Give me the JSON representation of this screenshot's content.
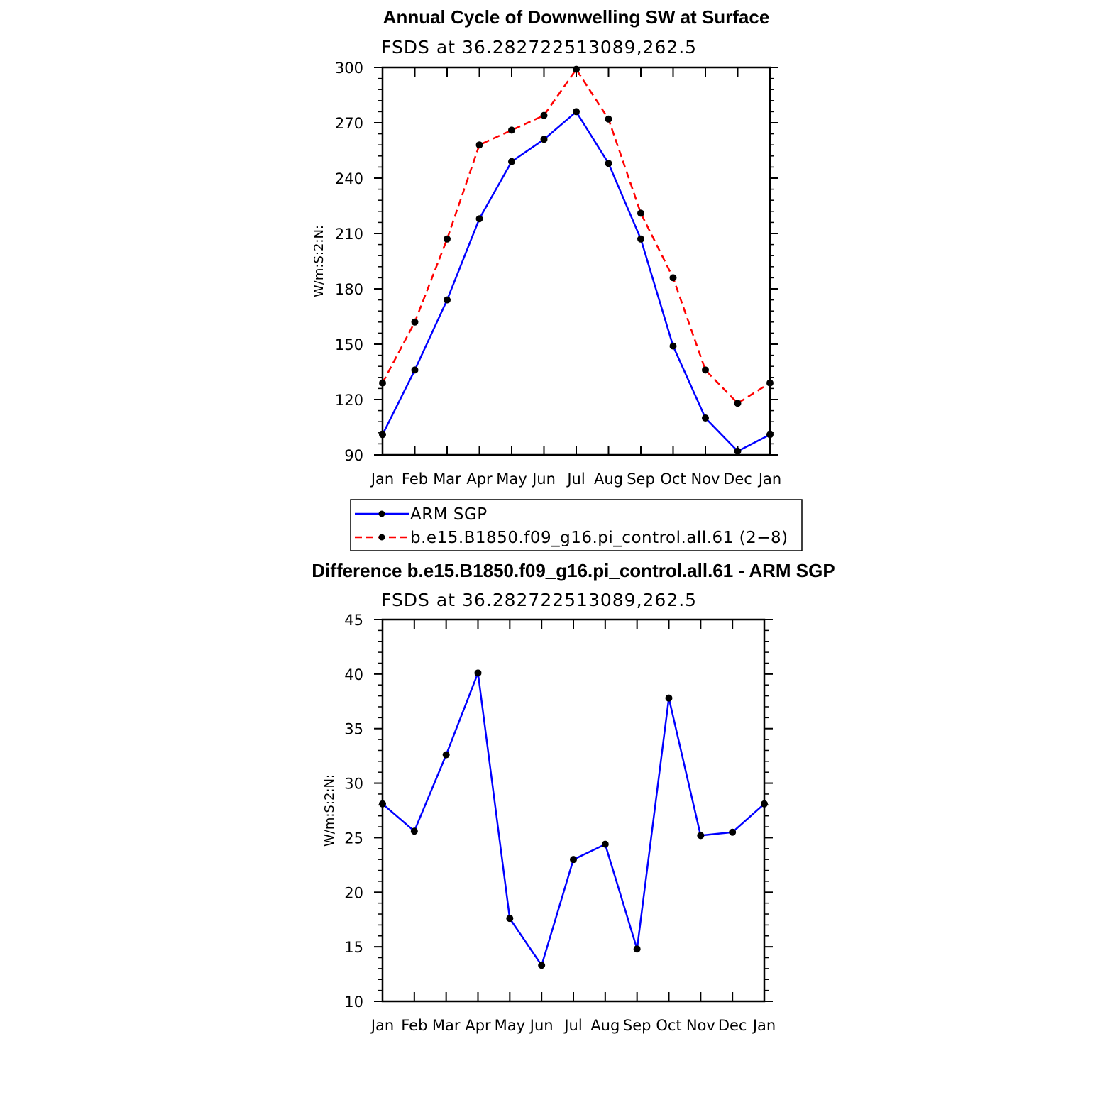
{
  "chart_data": [
    {
      "type": "line",
      "title": "Annual Cycle of Downwelling SW at Surface",
      "subtitle": "FSDS at 36.282722513089,262.5",
      "ylabel": "W/m:S:2:N:",
      "xlabel": "",
      "categories": [
        "Jan",
        "Feb",
        "Mar",
        "Apr",
        "May",
        "Jun",
        "Jul",
        "Aug",
        "Sep",
        "Oct",
        "Nov",
        "Dec",
        "Jan"
      ],
      "ylim": [
        90,
        300
      ],
      "yticks": [
        90,
        120,
        150,
        180,
        210,
        240,
        270,
        300
      ],
      "series": [
        {
          "name": "ARM SGP",
          "color": "#0000ff",
          "dash": false,
          "values": [
            101,
            136,
            174,
            218,
            249,
            261,
            276,
            248,
            207,
            149,
            110,
            92,
            101
          ]
        },
        {
          "name": "b.e15.B1850.f09_g16.pi_control.all.61 (2−8)",
          "color": "#ff0000",
          "dash": true,
          "values": [
            129,
            162,
            207,
            258,
            266,
            274,
            299,
            272,
            221,
            186,
            136,
            118,
            129
          ]
        }
      ],
      "legend": "bottom"
    },
    {
      "type": "line",
      "title": "Difference b.e15.B1850.f09_g16.pi_control.all.61 - ARM SGP",
      "subtitle": "FSDS at 36.282722513089,262.5",
      "ylabel": "W/m:S:2:N:",
      "xlabel": "",
      "categories": [
        "Jan",
        "Feb",
        "Mar",
        "Apr",
        "May",
        "Jun",
        "Jul",
        "Aug",
        "Sep",
        "Oct",
        "Nov",
        "Dec",
        "Jan"
      ],
      "ylim": [
        10,
        45
      ],
      "yticks": [
        10,
        15,
        20,
        25,
        30,
        35,
        40,
        45
      ],
      "series": [
        {
          "color": "#0000ff",
          "dash": false,
          "values": [
            28.1,
            25.6,
            32.6,
            40.1,
            17.6,
            13.3,
            23.0,
            24.4,
            14.8,
            37.8,
            25.2,
            25.5,
            28.1
          ]
        }
      ]
    }
  ]
}
